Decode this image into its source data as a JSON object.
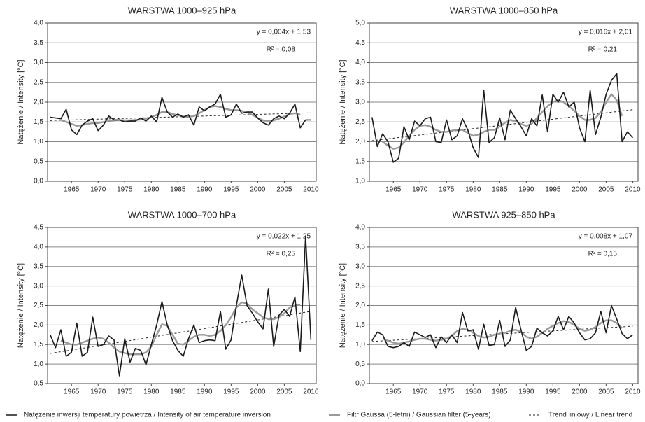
{
  "chart_data": [
    {
      "type": "line",
      "title": "WARSTWA 1000–925 hPa",
      "ylabel": "Natężenie / Intensity [°C]",
      "x": [
        1961,
        1962,
        1963,
        1964,
        1965,
        1966,
        1967,
        1968,
        1969,
        1970,
        1971,
        1972,
        1973,
        1974,
        1975,
        1976,
        1977,
        1978,
        1979,
        1980,
        1981,
        1982,
        1983,
        1984,
        1985,
        1986,
        1987,
        1988,
        1989,
        1990,
        1991,
        1992,
        1993,
        1994,
        1995,
        1996,
        1997,
        1998,
        1999,
        2000,
        2001,
        2002,
        2003,
        2004,
        2005,
        2006,
        2007,
        2008,
        2009,
        2010
      ],
      "xlim": [
        1960.5,
        2011
      ],
      "xticks": [
        1965,
        1970,
        1975,
        1980,
        1985,
        1990,
        1995,
        2000,
        2005,
        2010
      ],
      "ylim": [
        0,
        4
      ],
      "yticks": [
        {
          "value": 0,
          "label": "0,0"
        },
        {
          "value": 0.5,
          "label": "0,5"
        },
        {
          "value": 1,
          "label": "1,0"
        },
        {
          "value": 1.5,
          "label": "1,5"
        },
        {
          "value": 2,
          "label": "2,0"
        },
        {
          "value": 2.5,
          "label": "2,5"
        },
        {
          "value": 3,
          "label": "3,0"
        },
        {
          "value": 3.5,
          "label": "3,5"
        },
        {
          "value": 4,
          "label": "4,0"
        }
      ],
      "grid": true,
      "series": [
        {
          "name": "Natężenie inwersji temperatury powietrza / Intensity of air temperature inversion",
          "color": "#1a1a1a",
          "values": [
            1.62,
            1.6,
            1.58,
            1.82,
            1.3,
            1.18,
            1.42,
            1.52,
            1.58,
            1.28,
            1.42,
            1.65,
            1.55,
            1.55,
            1.5,
            1.52,
            1.52,
            1.6,
            1.52,
            1.65,
            1.5,
            2.12,
            1.75,
            1.62,
            1.7,
            1.62,
            1.68,
            1.42,
            1.88,
            1.78,
            1.88,
            1.95,
            2.2,
            1.62,
            1.68,
            1.95,
            1.72,
            1.75,
            1.75,
            1.6,
            1.48,
            1.42,
            1.58,
            1.65,
            1.58,
            1.72,
            1.95,
            1.35,
            1.55,
            1.55
          ]
        },
        {
          "name": "Filtr Gaussa (5-letni) / Gaussian filter (5-years)",
          "color": "#9a9a9a",
          "values": [
            null,
            null,
            1.55,
            1.5,
            1.45,
            1.4,
            1.42,
            1.45,
            1.47,
            1.47,
            1.5,
            1.52,
            1.54,
            1.55,
            1.54,
            1.54,
            1.55,
            1.56,
            1.58,
            1.62,
            1.68,
            1.75,
            1.75,
            1.7,
            1.67,
            1.64,
            1.63,
            1.65,
            1.72,
            1.8,
            1.88,
            1.9,
            1.88,
            1.83,
            1.8,
            1.8,
            1.78,
            1.74,
            1.68,
            1.6,
            1.54,
            1.52,
            1.54,
            1.58,
            1.64,
            1.7,
            1.72,
            1.68,
            null,
            null
          ]
        }
      ],
      "trend": {
        "name": "Trend liniowy / Linear trend",
        "color": "#222222",
        "slope": 0.004,
        "intercept": 1.53,
        "label": "y = 0,004x + 1,53",
        "r2_label": "R² = 0,08"
      }
    },
    {
      "type": "line",
      "title": "WARSTWA 1000–850 hPa",
      "ylabel": "Natężenie / Intensity [°C]",
      "x": [
        1961,
        1962,
        1963,
        1964,
        1965,
        1966,
        1967,
        1968,
        1969,
        1970,
        1971,
        1972,
        1973,
        1974,
        1975,
        1976,
        1977,
        1978,
        1979,
        1980,
        1981,
        1982,
        1983,
        1984,
        1985,
        1986,
        1987,
        1988,
        1989,
        1990,
        1991,
        1992,
        1993,
        1994,
        1995,
        1996,
        1997,
        1998,
        1999,
        2000,
        2001,
        2002,
        2003,
        2004,
        2005,
        2006,
        2007,
        2008,
        2009,
        2010
      ],
      "xlim": [
        1960.5,
        2011
      ],
      "xticks": [
        1965,
        1970,
        1975,
        1980,
        1985,
        1990,
        1995,
        2000,
        2005,
        2010
      ],
      "ylim": [
        1,
        5
      ],
      "yticks": [
        {
          "value": 1,
          "label": "1,0"
        },
        {
          "value": 1.5,
          "label": "1,5"
        },
        {
          "value": 2,
          "label": "2,0"
        },
        {
          "value": 2.5,
          "label": "2,5"
        },
        {
          "value": 3,
          "label": "3,0"
        },
        {
          "value": 3.5,
          "label": "3,5"
        },
        {
          "value": 4,
          "label": "4,0"
        },
        {
          "value": 4.5,
          "label": "4,5"
        },
        {
          "value": 5,
          "label": "5,0"
        }
      ],
      "grid": true,
      "series": [
        {
          "color": "#1a1a1a",
          "values": [
            2.62,
            1.88,
            2.2,
            2.0,
            1.48,
            1.58,
            2.38,
            2.05,
            2.52,
            2.4,
            2.58,
            2.62,
            2.0,
            1.98,
            2.55,
            2.05,
            2.15,
            2.58,
            2.3,
            1.85,
            1.6,
            3.3,
            1.98,
            2.1,
            2.6,
            2.05,
            2.8,
            2.58,
            2.38,
            2.15,
            2.58,
            2.4,
            3.18,
            2.25,
            3.2,
            3.0,
            3.25,
            2.88,
            3.0,
            2.35,
            2.0,
            3.3,
            2.18,
            2.62,
            3.2,
            3.55,
            3.72,
            2.0,
            2.25,
            2.1
          ]
        },
        {
          "color": "#9a9a9a",
          "values": [
            null,
            null,
            2.0,
            1.9,
            1.82,
            1.85,
            1.98,
            2.15,
            2.3,
            2.4,
            2.42,
            2.38,
            2.3,
            2.25,
            2.25,
            2.28,
            2.3,
            2.3,
            2.22,
            2.15,
            2.18,
            2.25,
            2.3,
            2.3,
            2.38,
            2.48,
            2.55,
            2.52,
            2.45,
            2.4,
            2.45,
            2.6,
            2.75,
            2.9,
            3.0,
            3.05,
            3.0,
            2.9,
            2.78,
            2.65,
            2.55,
            2.55,
            2.6,
            2.75,
            3.0,
            3.2,
            3.05,
            2.65,
            null,
            null
          ]
        }
      ],
      "trend": {
        "color": "#222222",
        "slope": 0.016,
        "intercept": 2.01,
        "label": "y = 0,016x + 2,01",
        "r2_label": "R² = 0,21"
      }
    },
    {
      "type": "line",
      "title": "WARSTWA 1000–700 hPa",
      "ylabel": "Natężenie / Intensity [°C]",
      "x": [
        1961,
        1962,
        1963,
        1964,
        1965,
        1966,
        1967,
        1968,
        1969,
        1970,
        1971,
        1972,
        1973,
        1974,
        1975,
        1976,
        1977,
        1978,
        1979,
        1980,
        1981,
        1982,
        1983,
        1984,
        1985,
        1986,
        1987,
        1988,
        1989,
        1990,
        1991,
        1992,
        1993,
        1994,
        1995,
        1996,
        1997,
        1998,
        1999,
        2000,
        2001,
        2002,
        2003,
        2004,
        2005,
        2006,
        2007,
        2008,
        2009,
        2010
      ],
      "xlim": [
        1960.5,
        2011
      ],
      "xticks": [
        1965,
        1970,
        1975,
        1980,
        1985,
        1990,
        1995,
        2000,
        2005,
        2010
      ],
      "ylim": [
        0.5,
        4.5
      ],
      "yticks": [
        {
          "value": 0.5,
          "label": "0,5"
        },
        {
          "value": 1,
          "label": "1,0"
        },
        {
          "value": 1.5,
          "label": "1,5"
        },
        {
          "value": 2,
          "label": "2,0"
        },
        {
          "value": 2.5,
          "label": "2,5"
        },
        {
          "value": 3,
          "label": "3,0"
        },
        {
          "value": 3.5,
          "label": "3,5"
        },
        {
          "value": 4,
          "label": "4,0"
        },
        {
          "value": 4.5,
          "label": "4,5"
        }
      ],
      "grid": true,
      "series": [
        {
          "color": "#1a1a1a",
          "values": [
            1.75,
            1.42,
            1.88,
            1.2,
            1.3,
            2.05,
            1.2,
            1.3,
            2.2,
            1.45,
            1.5,
            1.72,
            1.62,
            0.7,
            1.65,
            1.05,
            1.4,
            1.35,
            0.98,
            1.5,
            2.0,
            2.6,
            2.0,
            1.6,
            1.35,
            1.2,
            1.65,
            2.0,
            1.55,
            1.6,
            1.62,
            1.6,
            2.35,
            1.38,
            1.62,
            2.5,
            3.28,
            2.5,
            2.3,
            2.08,
            1.9,
            2.92,
            1.45,
            2.25,
            2.4,
            2.22,
            2.72,
            1.32,
            4.28,
            1.62
          ]
        },
        {
          "color": "#9a9a9a",
          "values": [
            null,
            null,
            1.6,
            1.55,
            1.5,
            1.5,
            1.55,
            1.6,
            1.65,
            1.68,
            1.65,
            1.55,
            1.42,
            1.32,
            1.28,
            1.25,
            1.25,
            1.25,
            1.3,
            1.45,
            1.75,
            2.02,
            1.98,
            1.75,
            1.52,
            1.5,
            1.6,
            1.7,
            1.75,
            1.75,
            1.72,
            1.75,
            1.85,
            2.0,
            2.2,
            2.45,
            2.58,
            2.55,
            2.4,
            2.3,
            2.2,
            2.15,
            2.15,
            2.2,
            2.3,
            2.45,
            2.5,
            2.52,
            null,
            null
          ]
        }
      ],
      "trend": {
        "color": "#222222",
        "slope": 0.022,
        "intercept": 1.25,
        "label": "y = 0,022x + 1,25",
        "r2_label": "R² = 0,25"
      }
    },
    {
      "type": "line",
      "title": "WARSTWA 925–850 hPa",
      "ylabel": "Natężenie / Intensity [°C]",
      "x": [
        1961,
        1962,
        1963,
        1964,
        1965,
        1966,
        1967,
        1968,
        1969,
        1970,
        1971,
        1972,
        1973,
        1974,
        1975,
        1976,
        1977,
        1978,
        1979,
        1980,
        1981,
        1982,
        1983,
        1984,
        1985,
        1986,
        1987,
        1988,
        1989,
        1990,
        1991,
        1992,
        1993,
        1994,
        1995,
        1996,
        1997,
        1998,
        1999,
        2000,
        2001,
        2002,
        2003,
        2004,
        2005,
        2006,
        2007,
        2008,
        2009,
        2010
      ],
      "xlim": [
        1960.5,
        2011
      ],
      "xticks": [
        1965,
        1970,
        1975,
        1980,
        1985,
        1990,
        1995,
        2000,
        2005,
        2010
      ],
      "ylim": [
        0,
        4
      ],
      "yticks": [
        {
          "value": 0,
          "label": "0,0"
        },
        {
          "value": 0.5,
          "label": "0,5"
        },
        {
          "value": 1,
          "label": "1,0"
        },
        {
          "value": 1.5,
          "label": "1,5"
        },
        {
          "value": 2,
          "label": "2,0"
        },
        {
          "value": 2.5,
          "label": "2,5"
        },
        {
          "value": 3,
          "label": "3,0"
        },
        {
          "value": 3.5,
          "label": "3,5"
        },
        {
          "value": 4,
          "label": "4,0"
        }
      ],
      "grid": true,
      "series": [
        {
          "color": "#1a1a1a",
          "values": [
            1.1,
            1.32,
            1.25,
            0.95,
            0.92,
            0.95,
            1.05,
            0.95,
            1.32,
            1.25,
            1.18,
            1.25,
            0.92,
            1.2,
            1.05,
            1.25,
            1.05,
            1.82,
            1.35,
            1.38,
            0.88,
            1.52,
            0.98,
            1.0,
            1.62,
            0.95,
            1.12,
            1.95,
            1.38,
            0.85,
            0.95,
            1.42,
            1.3,
            1.22,
            1.35,
            1.72,
            1.38,
            1.72,
            1.55,
            1.3,
            1.12,
            1.15,
            1.3,
            1.85,
            1.3,
            2.0,
            1.65,
            1.28,
            1.15,
            1.25
          ]
        },
        {
          "color": "#9a9a9a",
          "values": [
            null,
            null,
            1.15,
            1.1,
            1.05,
            1.02,
            1.05,
            1.08,
            1.12,
            1.15,
            1.15,
            1.12,
            1.1,
            1.12,
            1.15,
            1.22,
            1.35,
            1.4,
            1.38,
            1.3,
            1.22,
            1.18,
            1.2,
            1.25,
            1.28,
            1.3,
            1.35,
            1.38,
            1.32,
            1.2,
            1.15,
            1.2,
            1.3,
            1.4,
            1.48,
            1.55,
            1.6,
            1.58,
            1.5,
            1.4,
            1.35,
            1.38,
            1.45,
            1.55,
            1.62,
            1.62,
            1.55,
            1.42,
            null,
            null
          ]
        }
      ],
      "trend": {
        "color": "#222222",
        "slope": 0.008,
        "intercept": 1.07,
        "label": "y = 0,008x + 1,07",
        "r2_label": "R² = 0,15"
      }
    }
  ]
}
